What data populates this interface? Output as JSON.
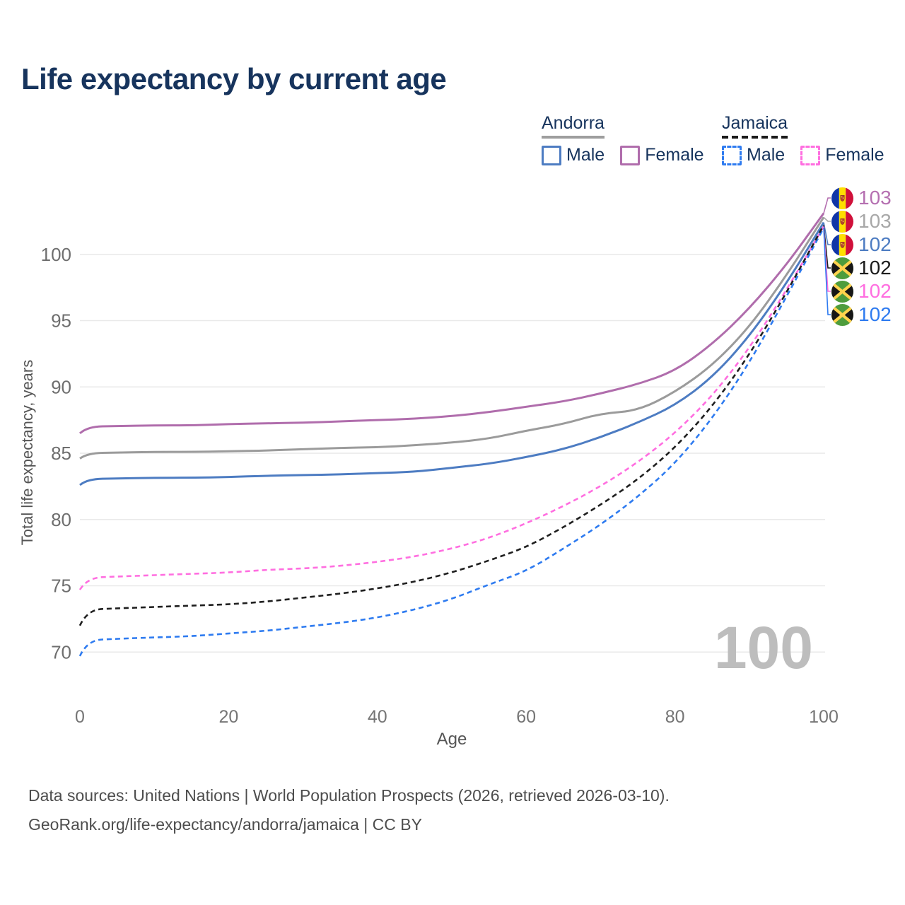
{
  "title": "Life expectancy by current age",
  "legend": {
    "groups": [
      {
        "id": "andorra",
        "label": "Andorra",
        "underline_color": "#9e9e9e",
        "underline_style": "solid",
        "items": [
          {
            "id": "andorra-male",
            "label": "Male",
            "color": "#4d7cc2",
            "style": "solid"
          },
          {
            "id": "andorra-female",
            "label": "Female",
            "color": "#b06dac",
            "style": "solid"
          }
        ]
      },
      {
        "id": "jamaica",
        "label": "Jamaica",
        "underline_color": "#1a1a1a",
        "underline_style": "dashed",
        "items": [
          {
            "id": "jamaica-male",
            "label": "Male",
            "color": "#2e7bf0",
            "style": "dashed"
          },
          {
            "id": "jamaica-female",
            "label": "Female",
            "color": "#ff6ee0",
            "style": "dashed"
          }
        ]
      }
    ]
  },
  "chart_data": {
    "type": "line",
    "title": "Life expectancy by current age",
    "xlabel": "Age",
    "ylabel": "Total life expectancy, years",
    "x_ticks": [
      0,
      20,
      40,
      60,
      80,
      100
    ],
    "y_ticks": [
      70,
      75,
      80,
      85,
      90,
      95,
      100
    ],
    "xlim": [
      0,
      100
    ],
    "ylim": [
      68.5,
      104.5
    ],
    "grid": "horizontal",
    "legend_position": "top-right",
    "x": [
      0,
      1,
      5,
      10,
      15,
      20,
      25,
      30,
      35,
      40,
      45,
      50,
      55,
      60,
      65,
      70,
      75,
      80,
      85,
      90,
      95,
      100
    ],
    "series": [
      {
        "name": "Andorra Female",
        "country": "andorra",
        "sex": "female",
        "color": "#b06dac",
        "dash": "solid",
        "values": [
          86.5,
          87.0,
          87.05,
          87.1,
          87.1,
          87.2,
          87.25,
          87.3,
          87.4,
          87.5,
          87.6,
          87.8,
          88.1,
          88.5,
          88.9,
          89.5,
          90.2,
          91.2,
          93.2,
          95.9,
          99.2,
          103.1
        ]
      },
      {
        "name": "Andorra Both sexes",
        "country": "andorra",
        "sex": "both",
        "color": "#9b9b9b",
        "dash": "solid",
        "values": [
          84.6,
          85.0,
          85.05,
          85.1,
          85.1,
          85.15,
          85.2,
          85.3,
          85.4,
          85.45,
          85.6,
          85.8,
          86.1,
          86.7,
          87.2,
          88.0,
          88.2,
          89.6,
          91.6,
          94.5,
          98.4,
          102.8
        ]
      },
      {
        "name": "Andorra Male",
        "country": "andorra",
        "sex": "male",
        "color": "#4d7cc2",
        "dash": "solid",
        "values": [
          82.6,
          83.05,
          83.1,
          83.15,
          83.15,
          83.2,
          83.3,
          83.35,
          83.4,
          83.5,
          83.6,
          83.9,
          84.2,
          84.7,
          85.3,
          86.2,
          87.3,
          88.6,
          90.7,
          93.8,
          97.8,
          102.4
        ]
      },
      {
        "name": "Jamaica Female",
        "country": "jamaica",
        "sex": "female",
        "color": "#ff6ee0",
        "dash": "dashed",
        "values": [
          74.7,
          75.6,
          75.7,
          75.8,
          75.9,
          76.0,
          76.2,
          76.3,
          76.5,
          76.8,
          77.2,
          77.8,
          78.6,
          79.7,
          81.0,
          82.5,
          84.3,
          86.5,
          89.3,
          92.9,
          97.3,
          102.1
        ]
      },
      {
        "name": "Jamaica Both sexes",
        "country": "jamaica",
        "sex": "both",
        "color": "#1f1f1f",
        "dash": "dashed",
        "values": [
          72.0,
          73.2,
          73.3,
          73.4,
          73.5,
          73.6,
          73.8,
          74.1,
          74.4,
          74.8,
          75.3,
          76.0,
          76.9,
          77.9,
          79.4,
          81.1,
          83.0,
          85.4,
          88.5,
          92.4,
          97.1,
          102.2
        ]
      },
      {
        "name": "Jamaica Male",
        "country": "jamaica",
        "sex": "male",
        "color": "#2e7bf0",
        "dash": "dashed",
        "values": [
          69.7,
          70.9,
          71.0,
          71.1,
          71.2,
          71.4,
          71.6,
          71.9,
          72.2,
          72.6,
          73.2,
          74.0,
          75.1,
          76.1,
          77.8,
          79.6,
          81.7,
          84.2,
          87.6,
          91.8,
          96.8,
          102.0
        ]
      }
    ],
    "end_labels": [
      {
        "series": "Andorra Female",
        "country": "andorra",
        "value": "103",
        "color": "#b570b1"
      },
      {
        "series": "Andorra Both sexes",
        "country": "andorra",
        "value": "103",
        "color": "#a8a8a8"
      },
      {
        "series": "Andorra Male",
        "country": "andorra",
        "value": "102",
        "color": "#4d7cc2"
      },
      {
        "series": "Jamaica Both sexes",
        "country": "jamaica",
        "value": "102",
        "color": "#1c1c1c"
      },
      {
        "series": "Jamaica Female",
        "country": "jamaica",
        "value": "102",
        "color": "#ff6ee0"
      },
      {
        "series": "Jamaica Male",
        "country": "jamaica",
        "value": "102",
        "color": "#2e7bf0"
      }
    ]
  },
  "flags": {
    "andorra": {
      "blue": "#1035a8",
      "yellow": "#fedf00",
      "red": "#d0103a",
      "crest": "#b5452c",
      "crest_accent": "#f6c84c"
    },
    "jamaica": {
      "green": "#4e9c3c",
      "black": "#171717",
      "gold": "#ffd34d"
    }
  },
  "watermark": "100",
  "footer": {
    "line1": "Data sources: United Nations | World Population Prospects (2026, retrieved 2026-03-10).",
    "line2": "GeoRank.org/life-expectancy/andorra/jamaica | CC BY"
  }
}
